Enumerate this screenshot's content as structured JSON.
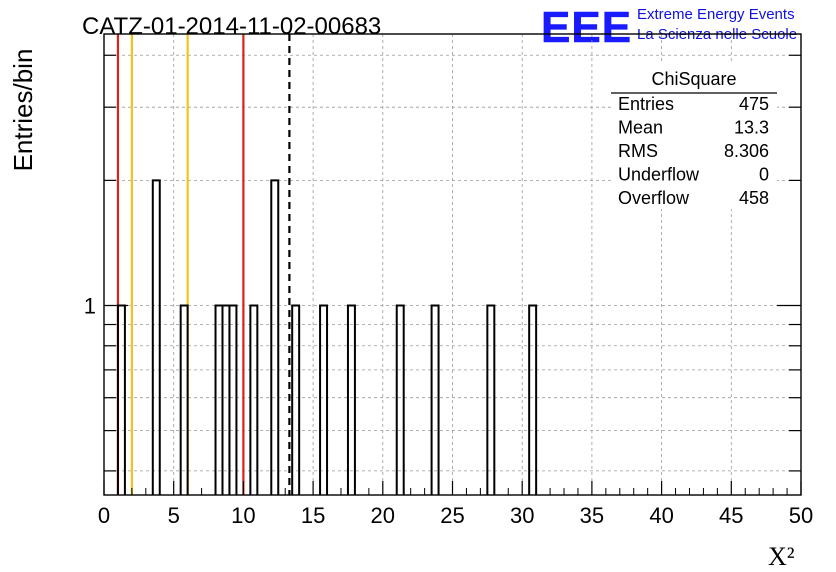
{
  "chart_data": {
    "type": "bar",
    "title": "CATZ-01-2014-11-02-00683",
    "xlabel": "X²",
    "ylabel": "Entries/bin",
    "xlim": [
      0,
      50
    ],
    "ylog": true,
    "ylim": [
      0.35,
      4.5
    ],
    "bin_width": 0.5,
    "x_ticks": [
      "0",
      "5",
      "10",
      "15",
      "20",
      "25",
      "30",
      "35",
      "40",
      "45",
      "50"
    ],
    "y_tick_labels": [
      {
        "value": 1,
        "label": "1"
      }
    ],
    "bins": [
      {
        "x": 1.0,
        "count": 1
      },
      {
        "x": 3.5,
        "count": 2
      },
      {
        "x": 5.5,
        "count": 1
      },
      {
        "x": 8.0,
        "count": 1
      },
      {
        "x": 8.5,
        "count": 1
      },
      {
        "x": 9.0,
        "count": 1
      },
      {
        "x": 10.5,
        "count": 1
      },
      {
        "x": 12.0,
        "count": 2
      },
      {
        "x": 13.5,
        "count": 1
      },
      {
        "x": 15.5,
        "count": 1
      },
      {
        "x": 17.5,
        "count": 1
      },
      {
        "x": 21.0,
        "count": 1
      },
      {
        "x": 23.5,
        "count": 1
      },
      {
        "x": 27.5,
        "count": 1
      },
      {
        "x": 30.5,
        "count": 1
      }
    ],
    "vertical_lines": [
      {
        "x": 1.0,
        "color": "#e0201b",
        "style": "solid"
      },
      {
        "x": 2.0,
        "color": "#f0c419",
        "style": "solid"
      },
      {
        "x": 6.0,
        "color": "#f0c419",
        "style": "solid"
      },
      {
        "x": 10.0,
        "color": "#e0201b",
        "style": "solid"
      },
      {
        "x": 13.3,
        "color": "#000000",
        "style": "dashed"
      }
    ],
    "grid": true,
    "stats_box": {
      "title": "ChiSquare",
      "placement": "top-right",
      "rows": [
        {
          "label": "Entries",
          "value": "475"
        },
        {
          "label": "Mean",
          "value": "13.3"
        },
        {
          "label": "RMS",
          "value": "8.306"
        },
        {
          "label": "Underflow",
          "value": "0"
        },
        {
          "label": "Overflow",
          "value": "458"
        }
      ]
    }
  },
  "logo": {
    "text": "EEE",
    "line1": "Extreme Energy Events",
    "line2": "La Scienza nelle Scuole",
    "color": "#1010e0"
  }
}
